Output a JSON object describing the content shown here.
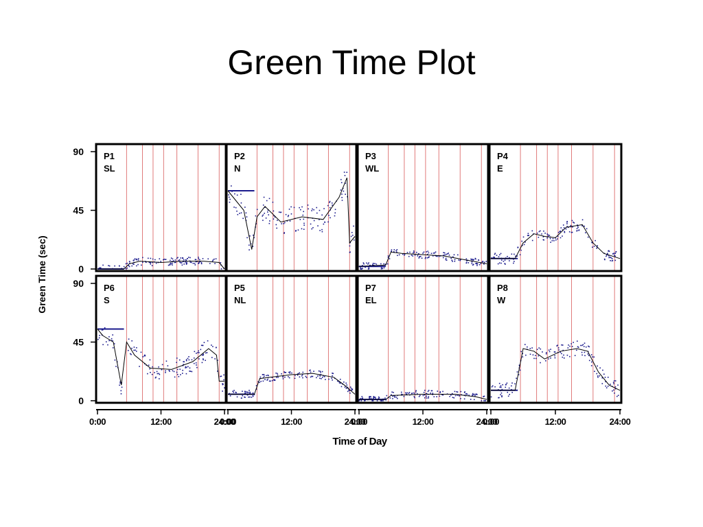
{
  "slide": {
    "title": "Green Time Plot"
  },
  "chart_data": {
    "type": "scatter",
    "layout": "small multiples, 2 rows x 4 columns",
    "ylabel": "Green Time (sec)",
    "xlabel": "Time of Day",
    "ylim": [
      0,
      90
    ],
    "yticks": [
      0,
      45,
      90
    ],
    "xlim": [
      "0:00",
      "24:00"
    ],
    "xticks": [
      "0:00",
      "12:00",
      "24:00"
    ],
    "grid": false,
    "legend": "none",
    "colors": {
      "points": "#1a1a8c",
      "trend": "#000000",
      "vlines": "#e07a7a",
      "frame": "#000000"
    },
    "vertical_lines_hours": [
      5.5,
      8.5,
      10.5,
      12.5,
      15,
      19,
      23
    ],
    "panels": [
      {
        "id": "P1",
        "label": "SL",
        "row": 0,
        "col": 0,
        "series": [
          {
            "x": [
              "0:00",
              "5:00",
              "6:00",
              "8:00",
              "12:00",
              "16:00",
              "20:00",
              "23:00",
              "24:00"
            ],
            "y": [
              0,
              0,
              4,
              6,
              5,
              6,
              6,
              5,
              0
            ]
          }
        ]
      },
      {
        "id": "P2",
        "label": "N",
        "row": 0,
        "col": 1,
        "series": [
          {
            "x": [
              "0:00",
              "1:00",
              "3:00",
              "4:30",
              "5:30",
              "7:00",
              "10:00",
              "14:00",
              "18:00",
              "21:00",
              "22:30",
              "23:00",
              "24:00"
            ],
            "y": [
              60,
              55,
              45,
              15,
              40,
              48,
              36,
              40,
              38,
              55,
              70,
              20,
              25
            ]
          }
        ]
      },
      {
        "id": "P3",
        "label": "WL",
        "row": 0,
        "col": 2,
        "series": [
          {
            "x": [
              "0:00",
              "5:00",
              "6:00",
              "8:00",
              "12:00",
              "16:00",
              "20:00",
              "24:00"
            ],
            "y": [
              2,
              3,
              13,
              12,
              11,
              10,
              7,
              4
            ]
          }
        ]
      },
      {
        "id": "P4",
        "label": "E",
        "row": 0,
        "col": 3,
        "series": [
          {
            "x": [
              "0:00",
              "4:30",
              "6:00",
              "8:00",
              "10:00",
              "12:00",
              "14:00",
              "17:00",
              "19:00",
              "21:00",
              "24:00"
            ],
            "y": [
              8,
              8,
              20,
              27,
              25,
              24,
              32,
              34,
              20,
              12,
              8
            ]
          }
        ]
      },
      {
        "id": "P6",
        "label": "S",
        "row": 1,
        "col": 0,
        "series": [
          {
            "x": [
              "0:00",
              "1:00",
              "3:00",
              "4:30",
              "5:30",
              "7:00",
              "10:00",
              "14:00",
              "18:00",
              "21:00",
              "22:30",
              "23:00",
              "24:00"
            ],
            "y": [
              55,
              50,
              45,
              12,
              45,
              35,
              25,
              24,
              30,
              40,
              35,
              15,
              15
            ]
          }
        ]
      },
      {
        "id": "P5",
        "label": "NL",
        "row": 1,
        "col": 1,
        "series": [
          {
            "x": [
              "0:00",
              "5:00",
              "6:00",
              "8:00",
              "12:00",
              "16:00",
              "20:00",
              "22:00",
              "24:00"
            ],
            "y": [
              5,
              5,
              17,
              18,
              20,
              21,
              18,
              12,
              5
            ]
          }
        ]
      },
      {
        "id": "P7",
        "label": "EL",
        "row": 1,
        "col": 2,
        "series": [
          {
            "x": [
              "0:00",
              "5:00",
              "6:00",
              "12:00",
              "18:00",
              "22:00",
              "24:00"
            ],
            "y": [
              1,
              1,
              4,
              5,
              5,
              3,
              1
            ]
          }
        ]
      },
      {
        "id": "P8",
        "label": "W",
        "row": 1,
        "col": 3,
        "series": [
          {
            "x": [
              "0:00",
              "4:30",
              "6:00",
              "8:00",
              "10:00",
              "13:00",
              "16:00",
              "18:00",
              "20:00",
              "22:00",
              "24:00"
            ],
            "y": [
              8,
              8,
              40,
              38,
              32,
              38,
              40,
              38,
              22,
              12,
              8
            ]
          }
        ]
      }
    ]
  }
}
